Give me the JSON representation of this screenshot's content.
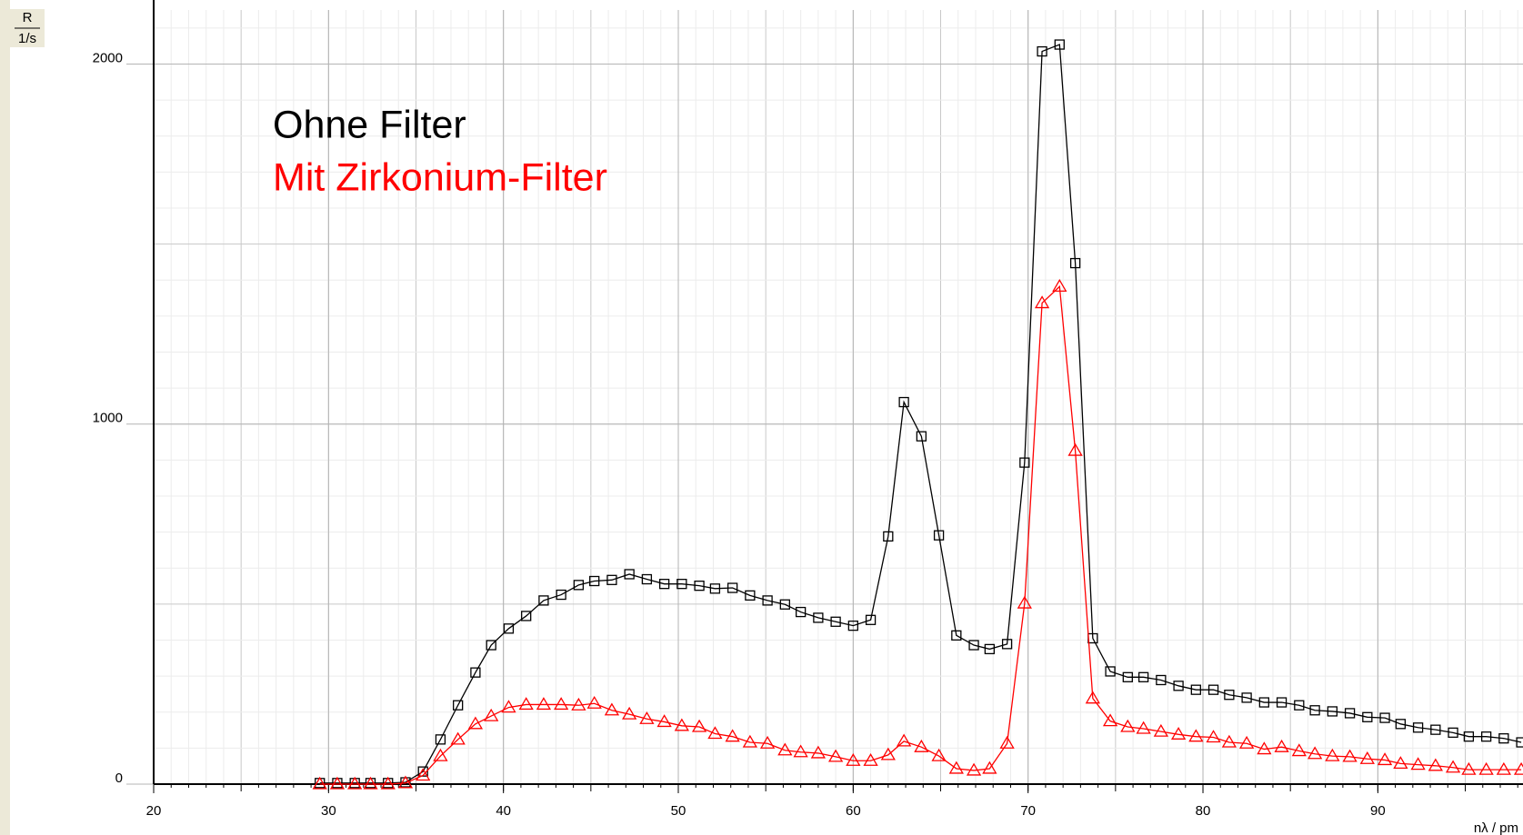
{
  "chart_data": {
    "type": "line",
    "y_label": "R",
    "y_unit": "1/s",
    "x_label": "nλ / pm",
    "x": [
      29.5,
      30.5,
      31.5,
      32.4,
      33.4,
      34.4,
      35.4,
      36.4,
      37.4,
      38.4,
      39.3,
      40.3,
      41.3,
      42.3,
      43.3,
      44.3,
      45.2,
      46.2,
      47.2,
      48.2,
      49.2,
      50.2,
      51.2,
      52.1,
      53.1,
      54.1,
      55.1,
      56.1,
      57.0,
      58.0,
      59.0,
      60.0,
      61.0,
      62.0,
      62.9,
      63.9,
      64.9,
      65.9,
      66.9,
      67.8,
      68.8,
      69.8,
      70.8,
      71.8,
      72.7,
      73.7,
      74.7,
      75.7,
      76.6,
      77.6,
      78.6,
      79.6,
      80.6,
      81.5,
      82.5,
      83.5,
      84.5,
      85.5,
      86.4,
      87.4,
      88.4,
      89.4,
      90.4,
      91.3,
      92.3,
      93.3,
      94.3,
      95.2,
      96.2,
      97.2,
      98.2
    ],
    "series": [
      {
        "name": "Ohne Filter",
        "color": "#000000",
        "marker": "square",
        "values": [
          3,
          3,
          3,
          3,
          3,
          5,
          35,
          124,
          219,
          310,
          386,
          432,
          467,
          510,
          526,
          553,
          564,
          567,
          583,
          569,
          556,
          556,
          551,
          543,
          545,
          524,
          510,
          499,
          478,
          462,
          451,
          440,
          456,
          688,
          1061,
          966,
          691,
          413,
          386,
          375,
          389,
          893,
          2035,
          2054,
          1447,
          405,
          313,
          297,
          297,
          289,
          273,
          262,
          262,
          248,
          240,
          227,
          227,
          219,
          205,
          202,
          197,
          186,
          184,
          167,
          157,
          151,
          143,
          132,
          132,
          127,
          116
        ]
      },
      {
        "name": "Mit Zirkonium-Filter",
        "color": "#ff0000",
        "marker": "triangle",
        "values": [
          0,
          0,
          0,
          0,
          0,
          3,
          24,
          78,
          124,
          167,
          189,
          213,
          221,
          221,
          221,
          219,
          224,
          205,
          194,
          181,
          173,
          162,
          159,
          140,
          132,
          116,
          113,
          94,
          89,
          86,
          76,
          65,
          65,
          81,
          119,
          103,
          78,
          43,
          38,
          43,
          113,
          502,
          1336,
          1382,
          926,
          238,
          175,
          159,
          154,
          146,
          138,
          132,
          130,
          116,
          113,
          97,
          103,
          92,
          84,
          78,
          76,
          70,
          67,
          57,
          54,
          51,
          46,
          40,
          40,
          40,
          40
        ]
      }
    ],
    "xlim": [
      20,
      98.3
    ],
    "ylim": [
      0,
      2150
    ],
    "xticks": [
      20,
      30,
      40,
      50,
      60,
      70,
      80,
      90
    ],
    "yticks": [
      0,
      1000,
      2000
    ],
    "grid": true
  }
}
